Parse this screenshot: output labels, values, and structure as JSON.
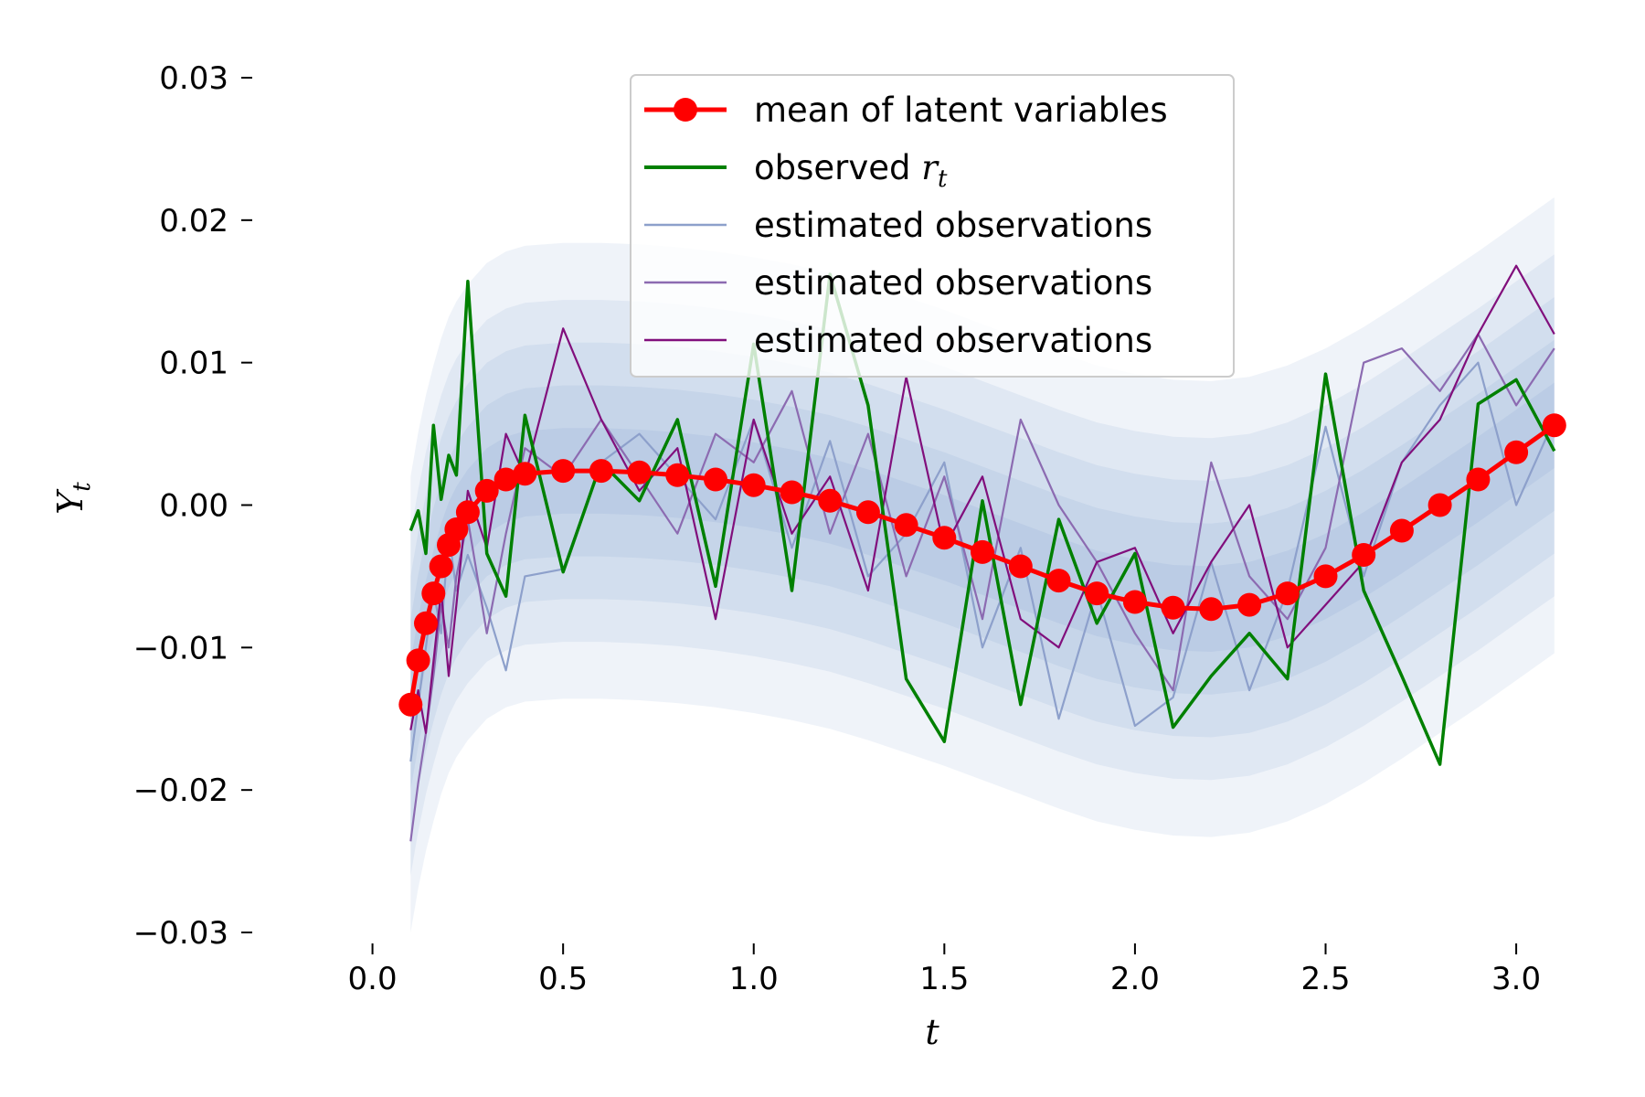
{
  "chart_data": {
    "type": "line",
    "title": "",
    "xlabel": "t",
    "ylabel": "Y",
    "ylabel_sub": "t",
    "xlim": [
      -0.15,
      3.17
    ],
    "ylim": [
      -0.03,
      0.03
    ],
    "grid": false,
    "legend_position": "top-center",
    "x_ticks": [
      0.0,
      0.5,
      1.0,
      1.5,
      2.0,
      2.5,
      3.0
    ],
    "x_tick_labels": [
      "0.0",
      "0.5",
      "1.0",
      "1.5",
      "2.0",
      "2.5",
      "3.0"
    ],
    "y_ticks": [
      0.03,
      0.02,
      0.01,
      0.0,
      -0.01,
      -0.02,
      -0.03
    ],
    "y_tick_labels": [
      "0.03",
      "0.02",
      "0.01",
      "0.00",
      "−0.01",
      "−0.02",
      "−0.03"
    ],
    "x": [
      0.1,
      0.12,
      0.14,
      0.16,
      0.18,
      0.2,
      0.22,
      0.25,
      0.3,
      0.35,
      0.4,
      0.5,
      0.6,
      0.7,
      0.8,
      0.9,
      1.0,
      1.1,
      1.2,
      1.3,
      1.4,
      1.5,
      1.6,
      1.7,
      1.8,
      1.9,
      2.0,
      2.1,
      2.2,
      2.3,
      2.4,
      2.5,
      2.6,
      2.7,
      2.8,
      2.9,
      3.0,
      3.1
    ],
    "series": [
      {
        "name": "mean of latent variables",
        "color": "#ff0000",
        "marker": "circle",
        "values": [
          -0.014,
          -0.0109,
          -0.0083,
          -0.0062,
          -0.0043,
          -0.0028,
          -0.0017,
          -0.0005,
          0.001,
          0.0018,
          0.0022,
          0.0024,
          0.0024,
          0.0023,
          0.0021,
          0.0018,
          0.0014,
          0.0009,
          0.0003,
          -0.0005,
          -0.0014,
          -0.0023,
          -0.0033,
          -0.0043,
          -0.0053,
          -0.0062,
          -0.0068,
          -0.0072,
          -0.0073,
          -0.007,
          -0.0062,
          -0.005,
          -0.0035,
          -0.0018,
          0.0,
          0.0018,
          0.0037,
          0.0056
        ]
      },
      {
        "name": "observed",
        "name_sub": "t",
        "name_var": "r",
        "color": "#008000",
        "values": [
          -0.0018,
          -0.0004,
          -0.0034,
          0.0056,
          0.0004,
          0.0035,
          0.0021,
          0.0157,
          -0.0034,
          -0.0064,
          0.0063,
          -0.0047,
          0.003,
          0.0003,
          0.006,
          -0.0057,
          0.0113,
          -0.006,
          0.0162,
          0.007,
          -0.0122,
          -0.0166,
          0.0003,
          -0.014,
          -0.001,
          -0.0083,
          -0.0034,
          -0.0156,
          -0.012,
          -0.009,
          -0.0122,
          0.0092,
          -0.006,
          -0.012,
          -0.0182,
          0.0071,
          0.0088,
          0.0038
        ]
      },
      {
        "name": "estimated observations",
        "color": "#8da0cb",
        "values": [
          -0.018,
          -0.014,
          -0.01,
          -0.006,
          -0.009,
          -0.002,
          -0.006,
          -0.0035,
          -0.0072,
          -0.0116,
          -0.005,
          -0.0045,
          0.003,
          0.005,
          0.002,
          -0.001,
          0.006,
          -0.003,
          0.0045,
          -0.005,
          -0.002,
          0.003,
          -0.01,
          -0.003,
          -0.015,
          -0.006,
          -0.0155,
          -0.0135,
          -0.004,
          -0.013,
          -0.006,
          0.0055,
          -0.005,
          0.003,
          0.007,
          0.01,
          0.0,
          0.006
        ]
      },
      {
        "name": "estimated observations",
        "color": "#8c6bb1",
        "values": [
          -0.0236,
          -0.0195,
          -0.016,
          -0.012,
          -0.007,
          -0.01,
          -0.005,
          -0.001,
          -0.009,
          -0.002,
          0.004,
          0.002,
          0.006,
          0.002,
          -0.002,
          0.005,
          0.003,
          0.008,
          -0.002,
          0.005,
          -0.005,
          0.002,
          -0.008,
          0.006,
          0.0,
          -0.004,
          -0.009,
          -0.013,
          0.003,
          -0.005,
          -0.008,
          -0.003,
          0.01,
          0.011,
          0.008,
          0.012,
          0.007,
          0.011
        ]
      },
      {
        "name": "estimated observations",
        "color": "#810f7c",
        "values": [
          -0.0158,
          -0.013,
          -0.016,
          -0.011,
          -0.006,
          -0.012,
          -0.007,
          0.001,
          -0.003,
          0.005,
          0.002,
          0.0124,
          0.006,
          0.001,
          0.004,
          -0.008,
          0.006,
          -0.002,
          0.002,
          -0.006,
          0.009,
          -0.003,
          0.002,
          -0.008,
          -0.01,
          -0.004,
          -0.003,
          -0.009,
          -0.004,
          0.0,
          -0.01,
          -0.007,
          -0.004,
          0.003,
          0.006,
          0.012,
          0.0168,
          0.012
        ]
      }
    ],
    "band": {
      "color": "#4f7fbf",
      "half_widths": [
        0.003,
        0.006,
        0.009,
        0.012,
        0.016
      ]
    }
  }
}
